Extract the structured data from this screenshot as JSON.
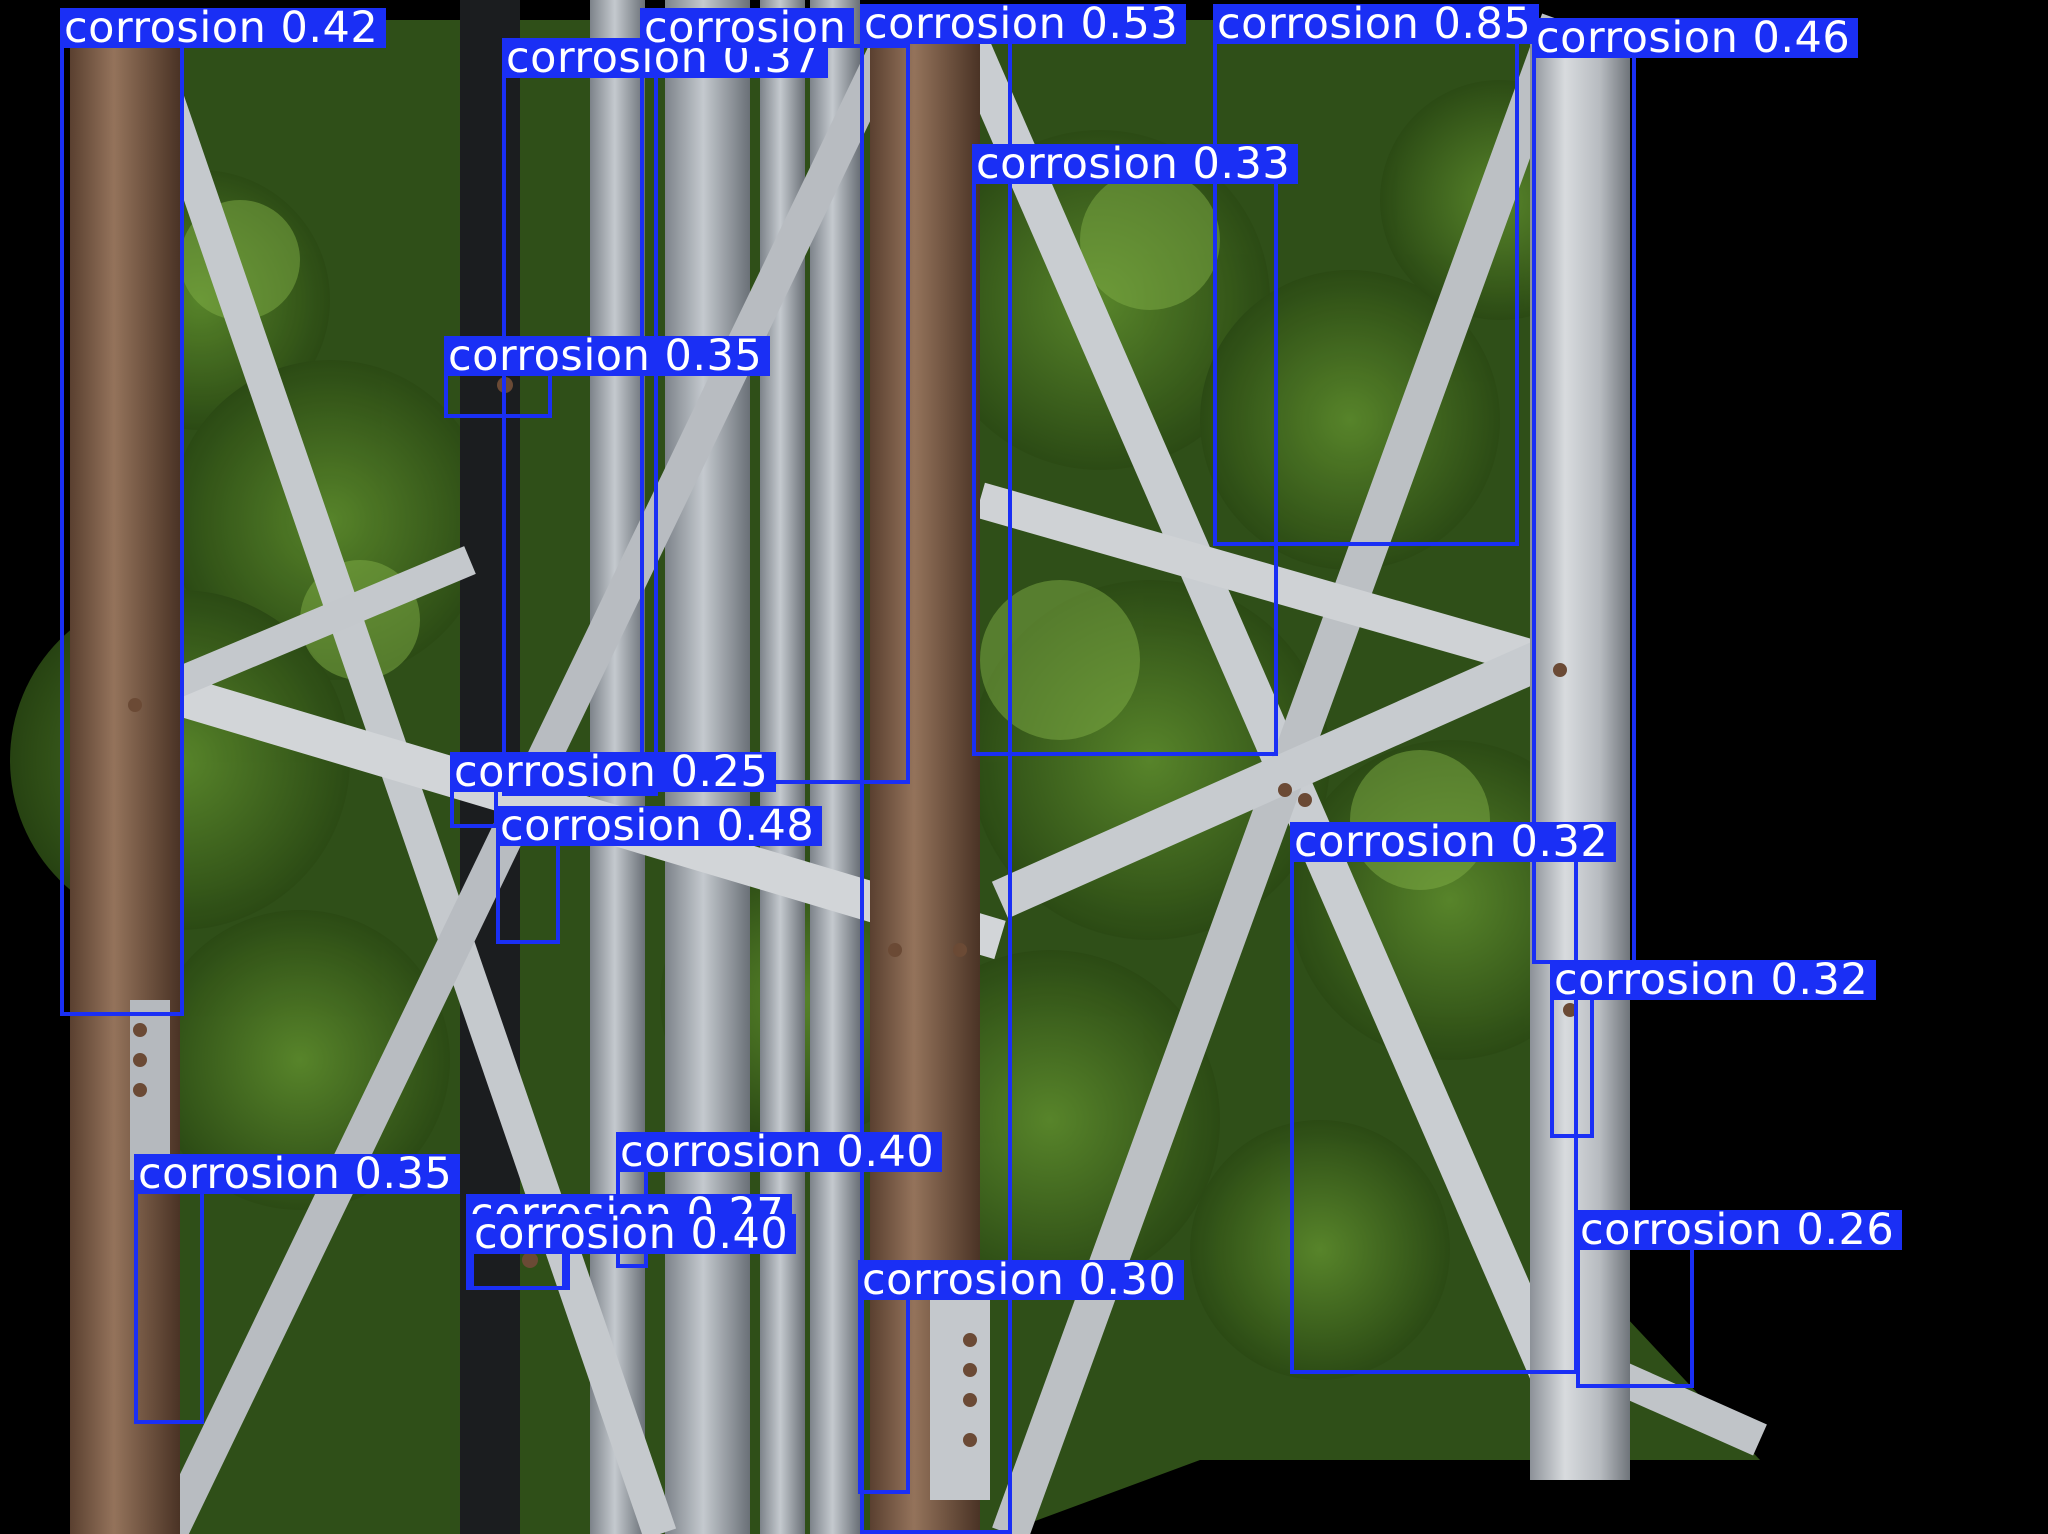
{
  "image": {
    "description": "Steel lattice telecom tower members with blue object-detection boxes labelled corrosion",
    "background_color": "#000000",
    "box_color": "#1a2ff5",
    "label_text_color": "#ffffff"
  },
  "detections": [
    {
      "label": "corrosion 0.42"
    },
    {
      "label": "corrosion 0.37"
    },
    {
      "label": "corrosion"
    },
    {
      "label": "corrosion 0.53"
    },
    {
      "label": "corrosion 0.85"
    },
    {
      "label": "corrosion 0.46"
    },
    {
      "label": "corrosion 0.33"
    },
    {
      "label": "corrosion 0.35"
    },
    {
      "label": "corrosion 0.25"
    },
    {
      "label": "corrosion 0.48"
    },
    {
      "label": "corrosion 0.32"
    },
    {
      "label": "corrosion 0.32"
    },
    {
      "label": "corrosion 0.35"
    },
    {
      "label": "corrosion 0.40"
    },
    {
      "label": "corrosion 0.27"
    },
    {
      "label": "corrosion 0.40"
    },
    {
      "label": "corrosion 0.30"
    },
    {
      "label": "corrosion 0.26"
    }
  ]
}
